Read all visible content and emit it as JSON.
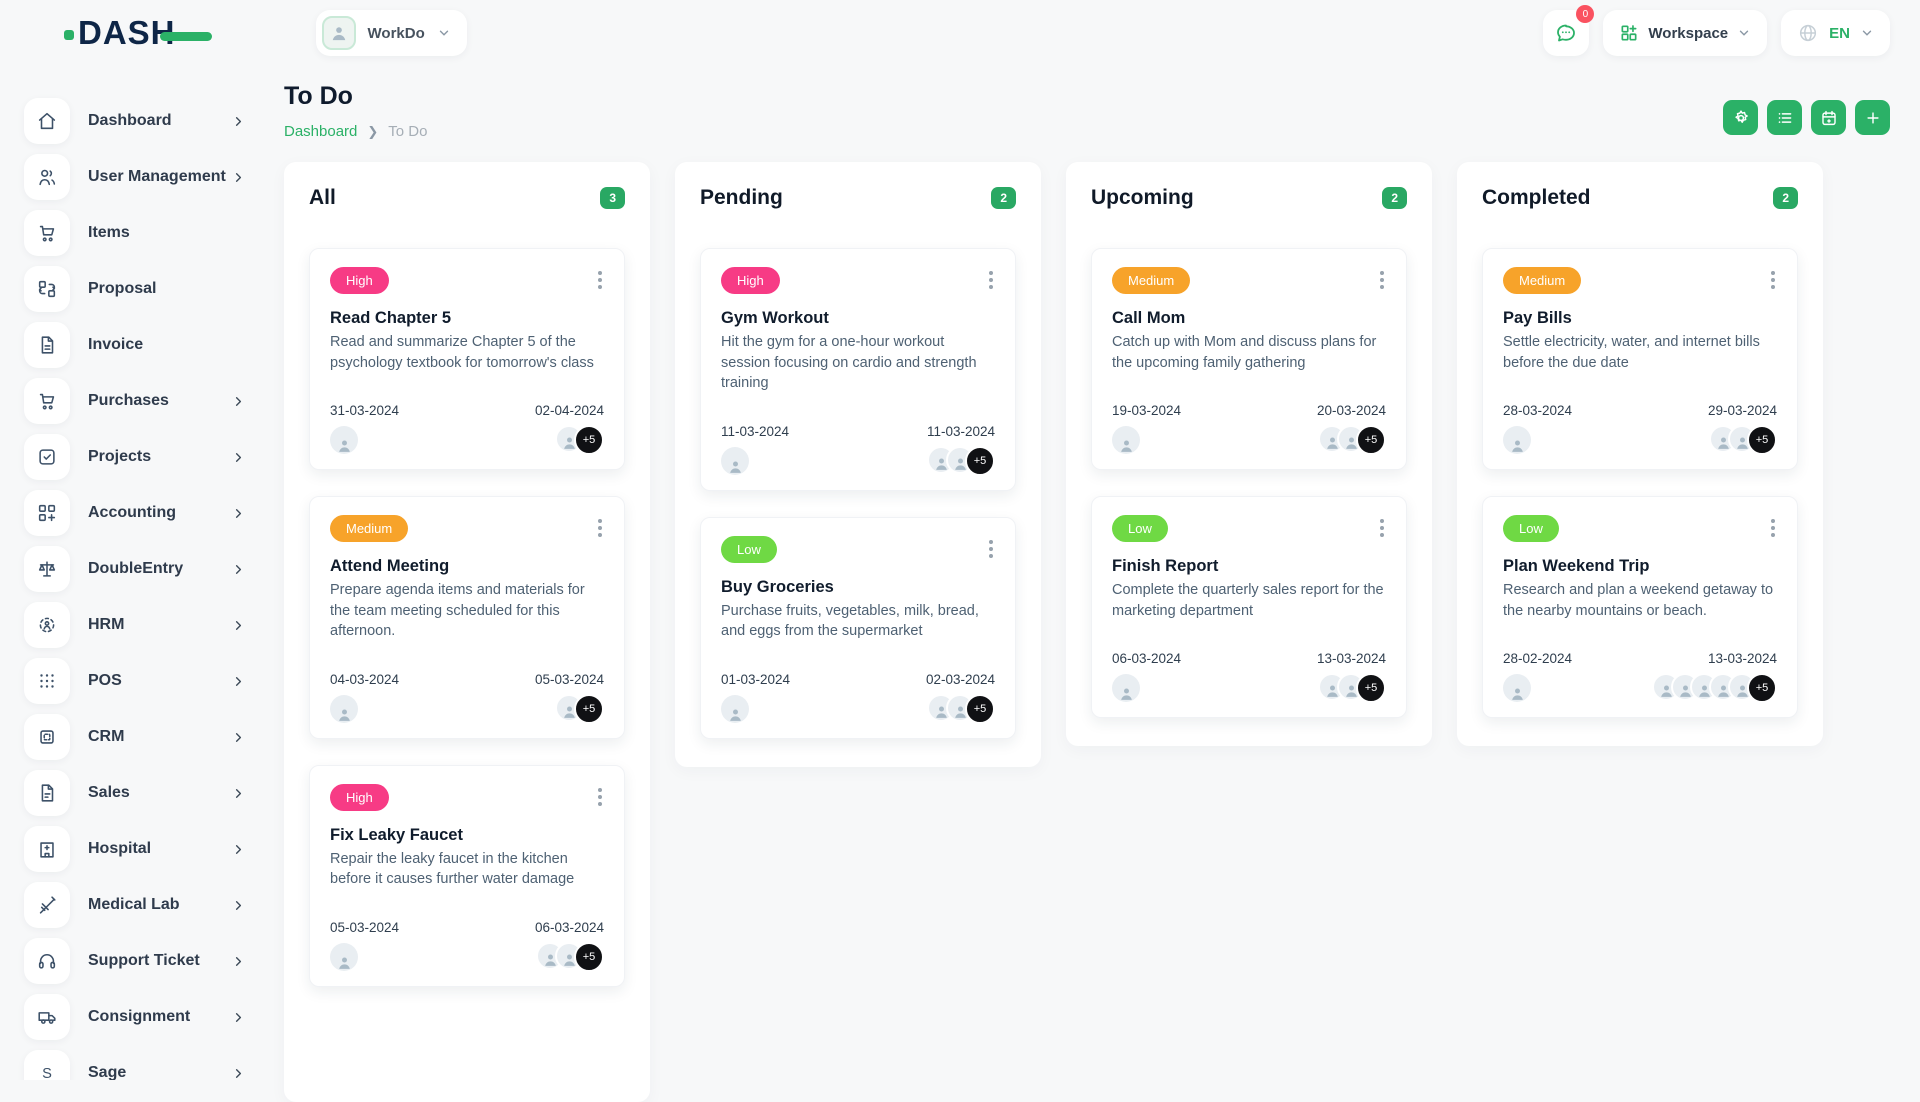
{
  "brand": {
    "logo_text": "DASH",
    "logo_icon": "dash-logo-icon"
  },
  "colors": {
    "accent": "#2bb167",
    "count_badge": "#29a863",
    "badge_red": "#fa5260",
    "high": "#f73b85",
    "medium": "#f7a32a",
    "low": "#6fd944",
    "dark": "#0e2647",
    "more_chip": "#101114"
  },
  "topbar": {
    "company_name": "WorkDo",
    "messages_badge": "0",
    "messages_icon": "chat-icon",
    "workspace_label": "Workspace",
    "workspace_icon": "grid-plus-icon",
    "language_icon": "globe-icon",
    "language": "EN"
  },
  "sidebar": {
    "items": [
      {
        "label": "Dashboard",
        "icon": "home-icon",
        "chevron": true
      },
      {
        "label": "User Management",
        "icon": "users-icon",
        "chevron": true
      },
      {
        "label": "Items",
        "icon": "cart-icon",
        "chevron": false
      },
      {
        "label": "Proposal",
        "icon": "proposal-icon",
        "chevron": false
      },
      {
        "label": "Invoice",
        "icon": "invoice-icon",
        "chevron": false
      },
      {
        "label": "Purchases",
        "icon": "purchases-cart-icon",
        "chevron": true
      },
      {
        "label": "Projects",
        "icon": "check-square-icon",
        "chevron": true
      },
      {
        "label": "Accounting",
        "icon": "grid-plus-outline-icon",
        "chevron": true
      },
      {
        "label": "DoubleEntry",
        "icon": "scales-icon",
        "chevron": true
      },
      {
        "label": "HRM",
        "icon": "person-target-icon",
        "chevron": true
      },
      {
        "label": "POS",
        "icon": "dots-grid-icon",
        "chevron": true
      },
      {
        "label": "CRM",
        "icon": "frame-icon",
        "chevron": true
      },
      {
        "label": "Sales",
        "icon": "file-icon",
        "chevron": true
      },
      {
        "label": "Hospital",
        "icon": "hospital-icon",
        "chevron": true
      },
      {
        "label": "Medical Lab",
        "icon": "syringe-icon",
        "chevron": true
      },
      {
        "label": "Support Ticket",
        "icon": "headphones-icon",
        "chevron": true
      },
      {
        "label": "Consignment",
        "icon": "truck-icon",
        "chevron": true
      },
      {
        "label": "Sage",
        "icon": "sage-s-icon",
        "chevron": true
      }
    ]
  },
  "page": {
    "title": "To Do",
    "breadcrumb": [
      {
        "label": "Dashboard"
      },
      {
        "label": "To Do"
      }
    ]
  },
  "toolbar": {
    "buttons": [
      {
        "name": "settings-button",
        "icon": "gear-icon"
      },
      {
        "name": "list-view-button",
        "icon": "list-icon"
      },
      {
        "name": "calendar-view-button",
        "icon": "calendar-icon"
      },
      {
        "name": "add-task-button",
        "icon": "plus-icon"
      }
    ]
  },
  "board": {
    "columns": [
      {
        "title": "All",
        "count": "3",
        "cards": [
          {
            "priority": "High",
            "title": "Read Chapter 5",
            "description": "Read and summarize Chapter 5 of the psychology textbook for tomorrow's class",
            "start_date": "31-03-2024",
            "end_date": "02-04-2024",
            "left_avatars": 1,
            "right_avatars": 1,
            "more_label": "+5"
          },
          {
            "priority": "Medium",
            "title": "Attend Meeting",
            "description": "Prepare agenda items and materials for the team meeting scheduled for this afternoon.",
            "start_date": "04-03-2024",
            "end_date": "05-03-2024",
            "left_avatars": 1,
            "right_avatars": 1,
            "more_label": "+5"
          },
          {
            "priority": "High",
            "title": "Fix Leaky Faucet",
            "description": "Repair the leaky faucet in the kitchen before it causes further water damage",
            "start_date": "05-03-2024",
            "end_date": "06-03-2024",
            "left_avatars": 1,
            "right_avatars": 2,
            "more_label": "+5"
          }
        ]
      },
      {
        "title": "Pending",
        "count": "2",
        "cards": [
          {
            "priority": "High",
            "title": "Gym Workout",
            "description": "Hit the gym for a one-hour workout session focusing on cardio and strength training",
            "start_date": "11-03-2024",
            "end_date": "11-03-2024",
            "left_avatars": 1,
            "right_avatars": 2,
            "more_label": "+5"
          },
          {
            "priority": "Low",
            "title": "Buy Groceries",
            "description": "Purchase fruits, vegetables, milk, bread, and eggs from the supermarket",
            "start_date": "01-03-2024",
            "end_date": "02-03-2024",
            "left_avatars": 1,
            "right_avatars": 2,
            "more_label": "+5"
          }
        ]
      },
      {
        "title": "Upcoming",
        "count": "2",
        "cards": [
          {
            "priority": "Medium",
            "title": "Call Mom",
            "description": "Catch up with Mom and discuss plans for the upcoming family gathering",
            "start_date": "19-03-2024",
            "end_date": "20-03-2024",
            "left_avatars": 1,
            "right_avatars": 2,
            "more_label": "+5"
          },
          {
            "priority": "Low",
            "title": "Finish Report",
            "description": "Complete the quarterly sales report for the marketing department",
            "start_date": "06-03-2024",
            "end_date": "13-03-2024",
            "left_avatars": 1,
            "right_avatars": 2,
            "more_label": "+5"
          }
        ]
      },
      {
        "title": "Completed",
        "count": "2",
        "cards": [
          {
            "priority": "Medium",
            "title": "Pay Bills",
            "description": "Settle electricity, water, and internet bills before the due date",
            "start_date": "28-03-2024",
            "end_date": "29-03-2024",
            "left_avatars": 1,
            "right_avatars": 2,
            "more_label": "+5"
          },
          {
            "priority": "Low",
            "title": "Plan Weekend Trip",
            "description": "Research and plan a weekend getaway to the nearby mountains or beach.",
            "start_date": "28-02-2024",
            "end_date": "13-03-2024",
            "left_avatars": 1,
            "right_avatars": 5,
            "more_label": "+5"
          }
        ]
      }
    ]
  }
}
